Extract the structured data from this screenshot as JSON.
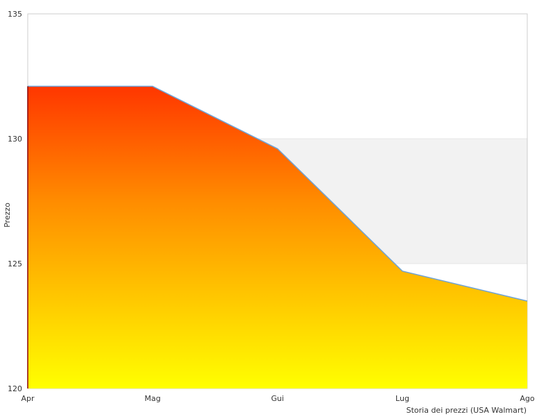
{
  "chart_data": {
    "type": "area",
    "categories": [
      "Apr",
      "Mag",
      "Gui",
      "Lug",
      "Ago"
    ],
    "series": [
      {
        "values": [
          132.1,
          132.1,
          129.6,
          124.7,
          123.5
        ]
      }
    ],
    "ylabel": "Prezzo",
    "caption": "Storia dei prezzi (USA Walmart)",
    "ylim": [
      120,
      135
    ],
    "yticks": [
      "120",
      "125",
      "130",
      "135"
    ],
    "grid": "alternating bands",
    "colors": {
      "fill_top": "#ff0000",
      "fill_mid": "#ff8c00",
      "fill_bottom": "#ffff00",
      "line": "#6fa3d6",
      "band": "#f2f2f2",
      "frame": "#cccccc",
      "start_edge": "#8b0000"
    }
  }
}
